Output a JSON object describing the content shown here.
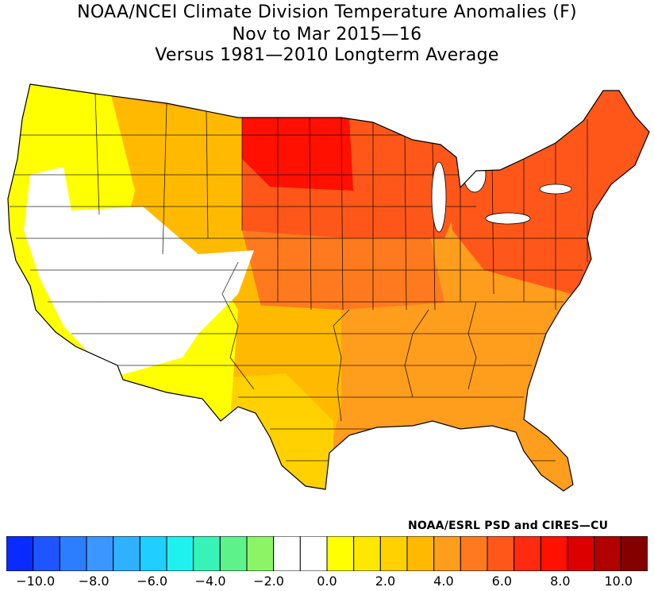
{
  "title": {
    "line1": "NOAA/NCEI Climate Division Temperature Anomalies (F)",
    "line2": "Nov to Mar 2015—16",
    "line3": "Versus 1981—2010 Longterm Average"
  },
  "credit": "NOAA/ESRL PSD and CIRES—CU",
  "colorbar": {
    "bins": [
      "#0a2bff",
      "#1e55ff",
      "#2d7dff",
      "#3b97ff",
      "#2fb1ff",
      "#1ecfff",
      "#1ff1ee",
      "#37f3b8",
      "#5ef28b",
      "#8cf565",
      "#ffffff",
      "#ffffff",
      "#ffff00",
      "#ffe800",
      "#ffd100",
      "#ffba00",
      "#ff9d1c",
      "#ff7a1e",
      "#ff5719",
      "#ff2a10",
      "#ff1000",
      "#dd0000",
      "#b00000",
      "#840000"
    ],
    "labels": [
      "−10.0",
      "−8.0",
      "−6.0",
      "−4.0",
      "−2.0",
      "0.0",
      "2.0",
      "4.0",
      "6.0",
      "8.0",
      "10.0"
    ],
    "min": -11,
    "max": 11
  },
  "map": {
    "regions": [
      {
        "name": "pacific-northwest",
        "anomaly": 1.2,
        "color": "#ffff00"
      },
      {
        "name": "great-basin",
        "anomaly": 0.3,
        "color": "#ffffff"
      },
      {
        "name": "california-coast",
        "anomaly": 1.3,
        "color": "#ffff00"
      },
      {
        "name": "southwest",
        "anomaly": 1.4,
        "color": "#ffff00"
      },
      {
        "name": "northern-rockies",
        "anomaly": 3.5,
        "color": "#ffba00"
      },
      {
        "name": "northern-plains",
        "anomaly": 7.5,
        "color": "#ff1000"
      },
      {
        "name": "upper-midwest",
        "anomaly": 6.5,
        "color": "#ff5719"
      },
      {
        "name": "central-plains",
        "anomaly": 5.0,
        "color": "#ff7a1e"
      },
      {
        "name": "texas",
        "anomaly": 2.5,
        "color": "#ffd100"
      },
      {
        "name": "southeast",
        "anomaly": 4.5,
        "color": "#ff9d1c"
      },
      {
        "name": "northeast",
        "anomaly": 6.5,
        "color": "#ff5719"
      }
    ]
  }
}
